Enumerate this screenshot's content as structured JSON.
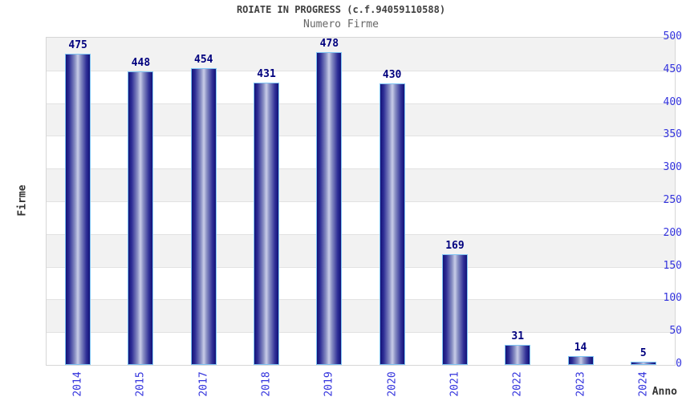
{
  "chart_data": {
    "type": "bar",
    "title": "ROIATE IN PROGRESS (c.f.94059110588)",
    "subtitle": "Numero Firme",
    "categories": [
      "2014",
      "2015",
      "2017",
      "2018",
      "2019",
      "2020",
      "2021",
      "2022",
      "2023",
      "2024"
    ],
    "values": [
      475,
      448,
      454,
      431,
      478,
      430,
      169,
      31,
      14,
      5
    ],
    "xlabel": "Anno",
    "ylabel": "Firme",
    "ylim": [
      0,
      500
    ],
    "yticks": [
      0,
      50,
      100,
      150,
      200,
      250,
      300,
      350,
      400,
      450,
      500
    ],
    "grid": true,
    "legend_position": "none",
    "band_pattern": "alternating",
    "colors": {
      "bar_dark": "#131378",
      "bar_light": "#C9CDE8",
      "bar_border": "#7FC4F4",
      "tick_label": "#3333DD",
      "value_label": "#00007E",
      "band_alt": "#F2F2F2",
      "band_main": "#FFFFFF",
      "grid_line": "#E2E2E2",
      "plot_border": "#D6D6D6",
      "title_color": "#404040",
      "subtitle_color": "#666666",
      "axis_label_color": "#333333"
    }
  }
}
